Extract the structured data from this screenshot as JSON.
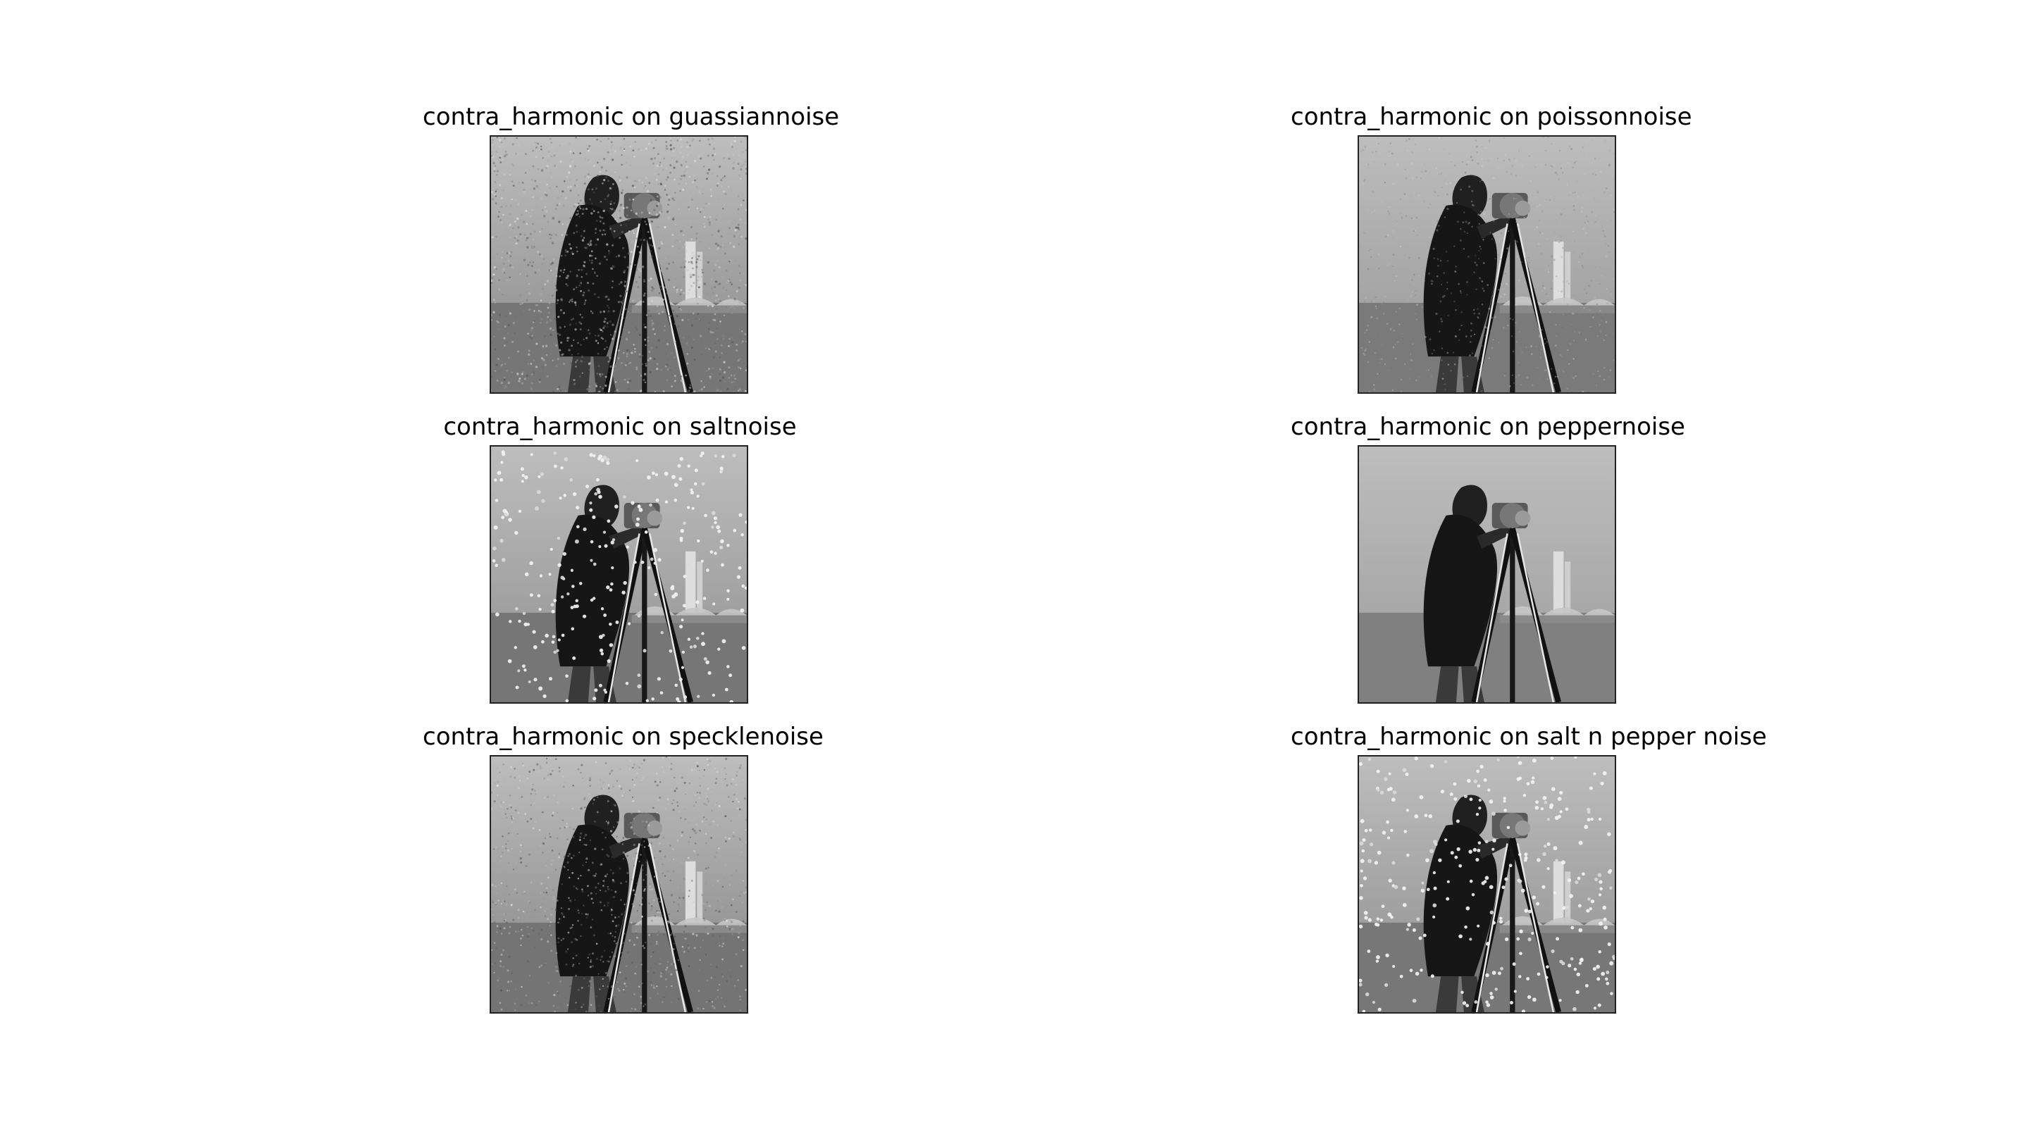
{
  "figure": {
    "panels": [
      {
        "title": "contra_harmonic on guassiannoise",
        "noise_style": "gaussian",
        "background_tone": "#9b9b9b",
        "ground_tone": "#767676"
      },
      {
        "title": "contra_harmonic on poissonnoise",
        "noise_style": "poisson",
        "background_tone": "#a4a4a4",
        "ground_tone": "#7a7a7a"
      },
      {
        "title": "contra_harmonic on saltnoise",
        "noise_style": "salt",
        "background_tone": "#a0a0a0",
        "ground_tone": "#767676"
      },
      {
        "title": "contra_harmonic on peppernoise",
        "noise_style": "pepper",
        "background_tone": "#a8a8a8",
        "ground_tone": "#808080"
      },
      {
        "title": "contra_harmonic on specklenoise",
        "noise_style": "speckle",
        "background_tone": "#989898",
        "ground_tone": "#747474"
      },
      {
        "title": "contra_harmonic on salt n pepper noise",
        "noise_style": "salt-pepper",
        "background_tone": "#9f9f9f",
        "ground_tone": "#777777"
      }
    ]
  }
}
